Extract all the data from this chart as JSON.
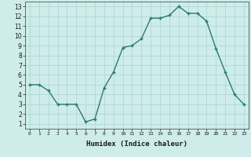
{
  "x": [
    0,
    1,
    2,
    3,
    4,
    5,
    6,
    7,
    8,
    9,
    10,
    11,
    12,
    13,
    14,
    15,
    16,
    17,
    18,
    19,
    20,
    21,
    22,
    23
  ],
  "y": [
    5.0,
    5.0,
    4.4,
    3.0,
    3.0,
    3.0,
    1.2,
    1.5,
    4.7,
    6.3,
    8.8,
    9.0,
    9.7,
    11.8,
    11.8,
    12.1,
    13.0,
    12.3,
    12.3,
    11.5,
    8.7,
    6.3,
    4.0,
    3.0
  ],
  "xlabel": "Humidex (Indice chaleur)",
  "xlim": [
    -0.5,
    23.5
  ],
  "ylim": [
    0.5,
    13.5
  ],
  "bg_color": "#ceecea",
  "grid_color": "#aed8d5",
  "line_color": "#2d7a6e",
  "marker_color": "#2d7a6e",
  "xtick_labels": [
    "0",
    "1",
    "2",
    "3",
    "4",
    "5",
    "6",
    "7",
    "8",
    "9",
    "10",
    "11",
    "12",
    "13",
    "14",
    "15",
    "16",
    "17",
    "18",
    "19",
    "20",
    "21",
    "22",
    "23"
  ],
  "ytick_labels": [
    "1",
    "2",
    "3",
    "4",
    "5",
    "6",
    "7",
    "8",
    "9",
    "10",
    "11",
    "12",
    "13"
  ],
  "yticks": [
    1,
    2,
    3,
    4,
    5,
    6,
    7,
    8,
    9,
    10,
    11,
    12,
    13
  ],
  "xticks": [
    0,
    1,
    2,
    3,
    4,
    5,
    6,
    7,
    8,
    9,
    10,
    11,
    12,
    13,
    14,
    15,
    16,
    17,
    18,
    19,
    20,
    21,
    22,
    23
  ]
}
